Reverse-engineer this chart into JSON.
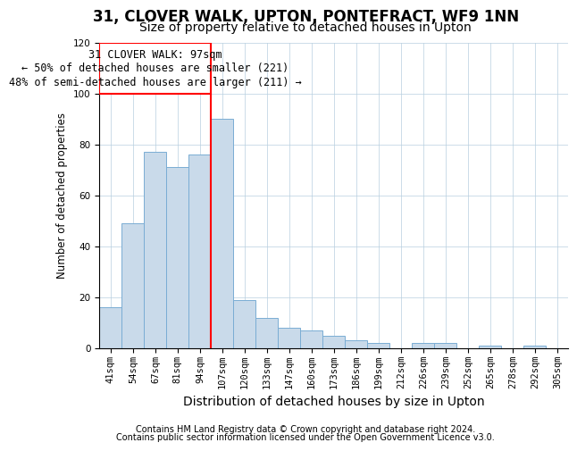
{
  "title1": "31, CLOVER WALK, UPTON, PONTEFRACT, WF9 1NN",
  "title2": "Size of property relative to detached houses in Upton",
  "xlabel": "Distribution of detached houses by size in Upton",
  "ylabel": "Number of detached properties",
  "categories": [
    "41sqm",
    "54sqm",
    "67sqm",
    "81sqm",
    "94sqm",
    "107sqm",
    "120sqm",
    "133sqm",
    "147sqm",
    "160sqm",
    "173sqm",
    "186sqm",
    "199sqm",
    "212sqm",
    "226sqm",
    "239sqm",
    "252sqm",
    "265sqm",
    "278sqm",
    "292sqm",
    "305sqm"
  ],
  "values": [
    16,
    49,
    77,
    71,
    76,
    90,
    19,
    12,
    8,
    7,
    5,
    3,
    2,
    0,
    2,
    2,
    0,
    1,
    0,
    1,
    0
  ],
  "bar_color": "#c9daea",
  "bar_edge_color": "#7aadd4",
  "red_line_x": 4.5,
  "annotation_line1": "31 CLOVER WALK: 97sqm",
  "annotation_line2": "← 50% of detached houses are smaller (221)",
  "annotation_line3": "48% of semi-detached houses are larger (211) →",
  "ylim": [
    0,
    120
  ],
  "yticks": [
    0,
    20,
    40,
    60,
    80,
    100,
    120
  ],
  "footer1": "Contains HM Land Registry data © Crown copyright and database right 2024.",
  "footer2": "Contains public sector information licensed under the Open Government Licence v3.0.",
  "title1_fontsize": 12,
  "title2_fontsize": 10,
  "xlabel_fontsize": 10,
  "ylabel_fontsize": 8.5,
  "tick_fontsize": 7.5,
  "footer_fontsize": 7,
  "annotation_fontsize": 8.5,
  "grid_color": "#b8cfe0"
}
